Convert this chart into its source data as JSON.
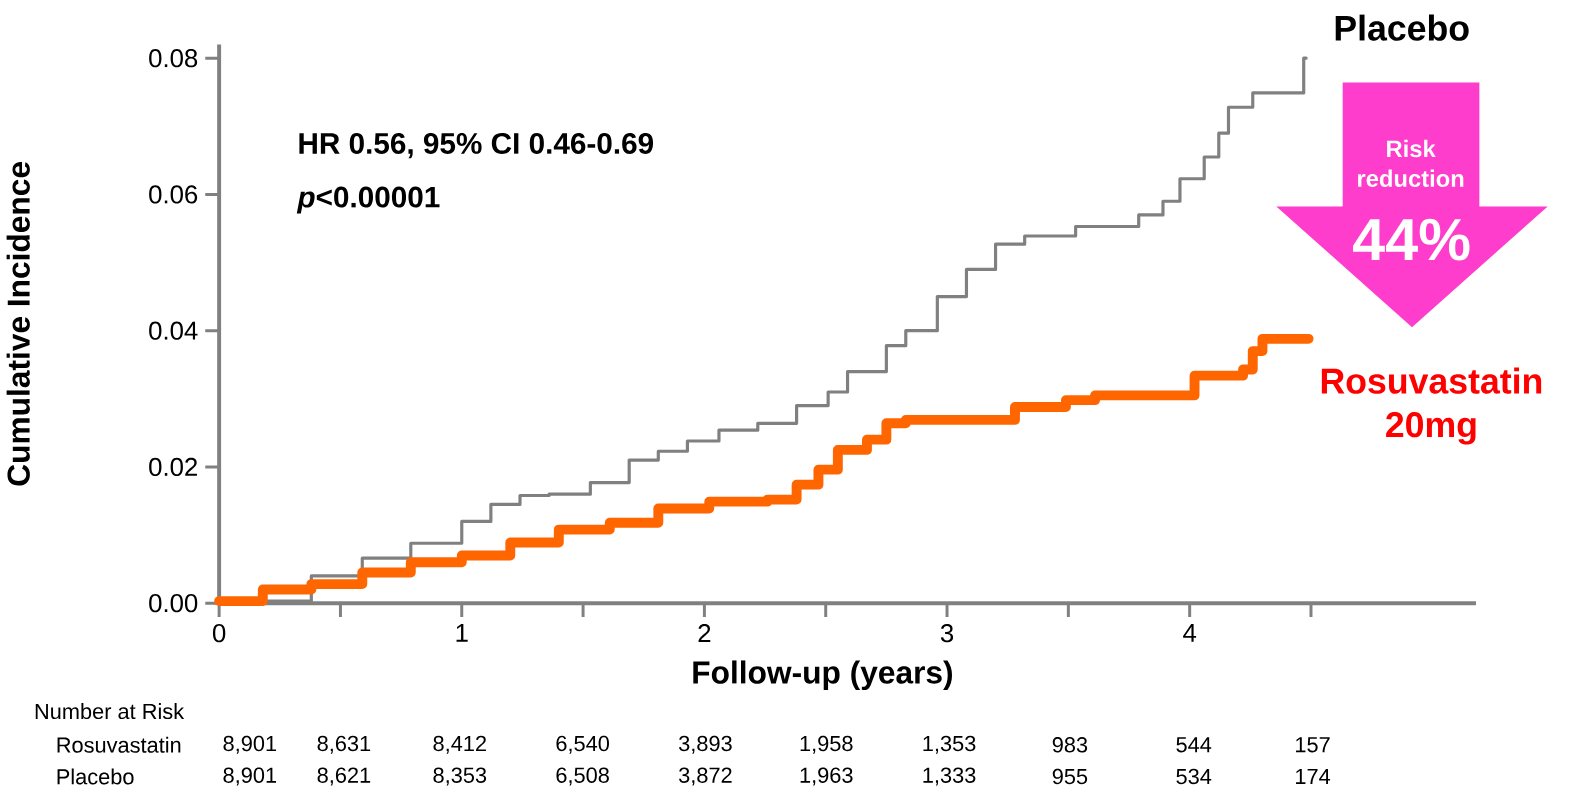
{
  "chart_data": {
    "type": "step",
    "xlabel": "Follow-up (years)",
    "ylabel": "Cumulative Incidence",
    "xlim": [
      0,
      5.18
    ],
    "ylim": [
      0,
      0.082
    ],
    "xticks": [
      0,
      {
        "value": 0.5,
        "label": null
      },
      1,
      {
        "value": 1.5,
        "label": null
      },
      2,
      {
        "value": 2.5,
        "label": null
      },
      3,
      {
        "value": 3.5,
        "label": null
      },
      4,
      {
        "value": 4.5,
        "label": null
      }
    ],
    "yticks": [
      {
        "value": 0,
        "label": "0.00"
      },
      {
        "value": 0.02,
        "label": "0.02"
      },
      {
        "value": 0.04,
        "label": "0.04"
      },
      {
        "value": 0.06,
        "label": "0.06"
      },
      {
        "value": 0.08,
        "label": "0.08"
      }
    ],
    "marker": "none",
    "series": [
      {
        "name": "Placebo",
        "color": "#808080",
        "x": [
          0,
          0.18,
          0.38,
          0.59,
          0.79,
          1.0,
          1.12,
          1.24,
          1.36,
          1.53,
          1.69,
          1.81,
          1.93,
          2.06,
          2.22,
          2.38,
          2.51,
          2.59,
          2.75,
          2.83,
          2.96,
          3.08,
          3.2,
          3.32,
          3.53,
          3.79,
          3.89,
          3.96,
          4.06,
          4.12,
          4.16,
          4.26,
          4.47,
          4.48
        ],
        "values": [
          0.0003,
          null,
          0.004,
          0.0066,
          0.0088,
          0.012,
          0.0145,
          0.0158,
          0.016,
          0.0177,
          0.021,
          0.0223,
          0.0238,
          0.0254,
          0.0264,
          0.029,
          0.031,
          0.034,
          0.0378,
          0.04,
          0.045,
          0.049,
          0.0527,
          0.0539,
          0.0553,
          0.057,
          0.059,
          0.0623,
          0.0655,
          0.069,
          0.0728,
          0.0749,
          0.08,
          0.08
        ]
      },
      {
        "name": "Rosuvastatin 20mg",
        "color": "#ff6600",
        "x": [
          0,
          0.18,
          0.38,
          0.59,
          0.79,
          1.0,
          1.2,
          1.4,
          1.61,
          1.81,
          2.02,
          2.26,
          2.38,
          2.47,
          2.55,
          2.67,
          2.75,
          2.83,
          3.08,
          3.28,
          3.49,
          3.61,
          3.98,
          4.02,
          4.22,
          4.26,
          4.3,
          4.49
        ],
        "values": [
          0.0003,
          0.002,
          0.0028,
          0.0045,
          0.006,
          0.007,
          0.0089,
          0.0108,
          0.0118,
          0.0139,
          0.0149,
          0.0152,
          0.0174,
          0.0196,
          0.0225,
          0.024,
          0.0264,
          0.0269,
          0.0269,
          0.0288,
          0.0298,
          0.0305,
          0.0305,
          0.0334,
          0.0343,
          0.037,
          0.0388,
          0.0388
        ]
      }
    ],
    "annotations": [
      "HR 0.56, 95% CI 0.46-0.69",
      "*p*<0.00001",
      "Risk reduction",
      "44%",
      "Number at Risk",
      "Rosuvastatin",
      "8,901",
      "8,631",
      "8,412",
      "6,540",
      "3,893",
      "1,958",
      "1,353",
      "983",
      "544",
      "157",
      "Placebo",
      "8,901",
      "8,621",
      "8,353",
      "6,508",
      "3,872",
      "1,963",
      "1,333",
      "955",
      "534",
      "174"
    ]
  }
}
